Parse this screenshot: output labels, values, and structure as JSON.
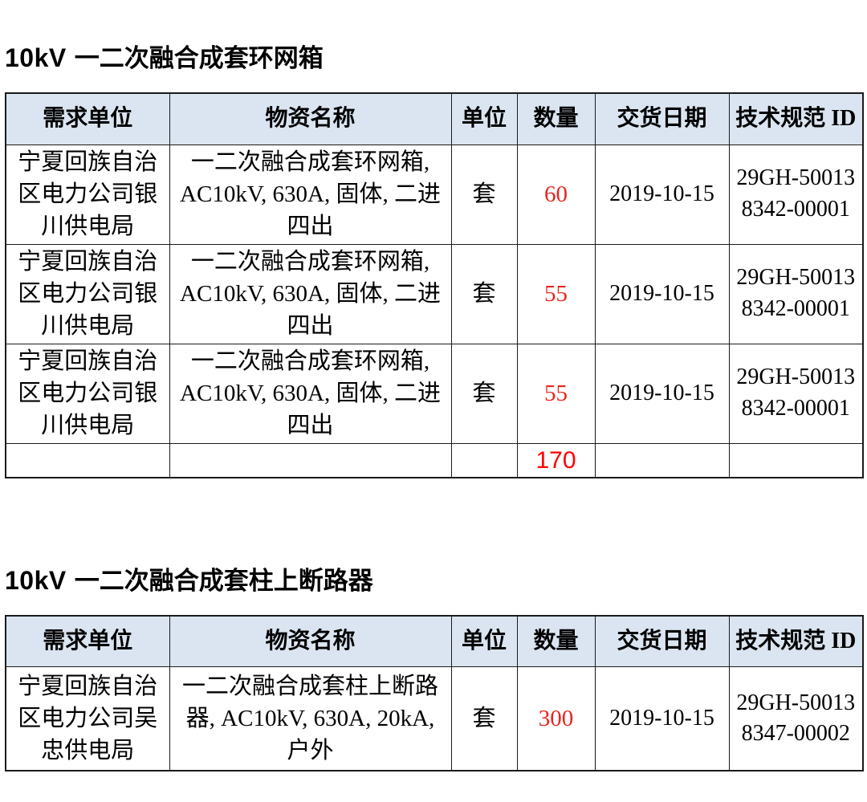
{
  "colors": {
    "header_bg": "#dbe5f1",
    "border": "#1a1a1a",
    "qty_red": "#e8251f",
    "total_red": "#ff0000",
    "text": "#000000",
    "page_bg": "#ffffff"
  },
  "columns": {
    "demand_unit": "需求单位",
    "material_name": "物资名称",
    "uom": "单位",
    "quantity": "数量",
    "delivery_date": "交货日期",
    "spec_id": "技术规范 ID"
  },
  "tables": [
    {
      "title": {
        "prefix": "10kV",
        "text": "一二次融合成套环网箱"
      },
      "rows": [
        {
          "unit": "宁夏回族自治区电力公司银川供电局",
          "material": "一二次融合成套环网箱, AC10kV, 630A, 固体, 二进四出",
          "uom": "套",
          "qty": "60",
          "date": "2019-10-15",
          "spec_id": "29GH-500138342-00001"
        },
        {
          "unit": "宁夏回族自治区电力公司银川供电局",
          "material": "一二次融合成套环网箱, AC10kV, 630A, 固体, 二进四出",
          "uom": "套",
          "qty": "55",
          "date": "2019-10-15",
          "spec_id": "29GH-500138342-00001"
        },
        {
          "unit": "宁夏回族自治区电力公司银川供电局",
          "material": "一二次融合成套环网箱, AC10kV, 630A, 固体, 二进四出",
          "uom": "套",
          "qty": "55",
          "date": "2019-10-15",
          "spec_id": "29GH-500138342-00001"
        }
      ],
      "total_qty": "170"
    },
    {
      "title": {
        "prefix": "10kV",
        "text": "一二次融合成套柱上断路器"
      },
      "rows": [
        {
          "unit": "宁夏回族自治区电力公司吴忠供电局",
          "material": "一二次融合成套柱上断路器, AC10kV, 630A, 20kA, 户外",
          "uom": "套",
          "qty": "300",
          "date": "2019-10-15",
          "spec_id": "29GH-500138347-00002"
        }
      ]
    }
  ]
}
